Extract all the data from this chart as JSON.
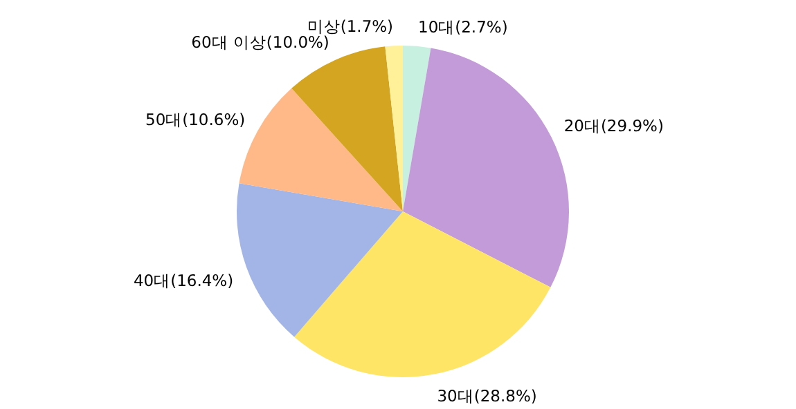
{
  "chart_data": {
    "type": "pie",
    "categories": [
      "10대",
      "20대",
      "30대",
      "40대",
      "50대",
      "60대 이상",
      "미상"
    ],
    "values": [
      2.7,
      29.9,
      28.8,
      16.4,
      10.6,
      10.0,
      1.7
    ],
    "value_labels": [
      "(2.7%)",
      "(29.9%)",
      "(28.8%)",
      "(16.4%)",
      "(10.6%)",
      "(10.0%)",
      "(1.7%)"
    ],
    "colors": [
      "#c8f0e0",
      "#c39bd8",
      "#ffe566",
      "#a3b5e6",
      "#ffb888",
      "#d4a520",
      "#fff09a"
    ]
  }
}
